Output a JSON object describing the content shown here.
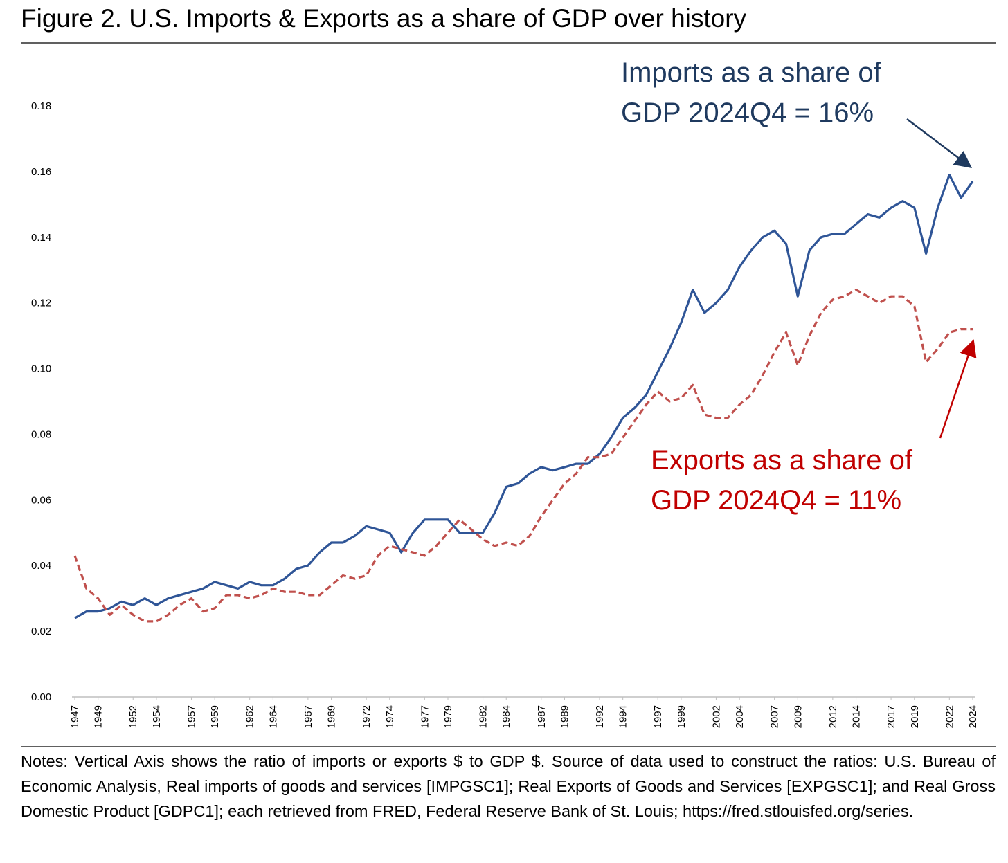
{
  "chart_data": {
    "type": "line",
    "title": "Figure 2. U.S. Imports & Exports as a share of GDP over history",
    "annotations": [
      {
        "lines": [
          "Imports as a share of",
          "GDP 2024Q4 = 16%"
        ],
        "color": "#1f3a5f"
      },
      {
        "lines": [
          "Exports as a share of",
          "GDP 2024Q4 = 11%"
        ],
        "color": "#c00000"
      }
    ],
    "notes": "Notes: Vertical Axis shows the ratio of imports or exports $ to GDP $. Source of data used to construct the ratios: U.S. Bureau of Economic Analysis, Real imports of goods and services [IMPGSC1]; Real Exports of Goods and Services [EXPGSC1]; and Real Gross Domestic Product [GDPC1]; each retrieved from FRED, Federal Reserve Bank of St. Louis; https://fred.stlouisfed.org/series.",
    "x": [
      1947,
      1948,
      1949,
      1950,
      1951,
      1952,
      1953,
      1954,
      1955,
      1956,
      1957,
      1958,
      1959,
      1960,
      1961,
      1962,
      1963,
      1964,
      1965,
      1966,
      1967,
      1968,
      1969,
      1970,
      1971,
      1972,
      1973,
      1974,
      1975,
      1976,
      1977,
      1978,
      1979,
      1980,
      1981,
      1982,
      1983,
      1984,
      1985,
      1986,
      1987,
      1988,
      1989,
      1990,
      1991,
      1992,
      1993,
      1994,
      1995,
      1996,
      1997,
      1998,
      1999,
      2000,
      2001,
      2002,
      2003,
      2004,
      2005,
      2006,
      2007,
      2008,
      2009,
      2010,
      2011,
      2012,
      2013,
      2014,
      2015,
      2016,
      2017,
      2018,
      2019,
      2020,
      2021,
      2022,
      2023,
      2024
    ],
    "series": [
      {
        "name": "Imports",
        "color": "#2f5597",
        "dashed": false,
        "values": [
          0.024,
          0.026,
          0.026,
          0.027,
          0.029,
          0.028,
          0.03,
          0.028,
          0.03,
          0.031,
          0.032,
          0.033,
          0.035,
          0.034,
          0.033,
          0.035,
          0.034,
          0.034,
          0.036,
          0.039,
          0.04,
          0.044,
          0.047,
          0.047,
          0.049,
          0.052,
          0.051,
          0.05,
          0.044,
          0.05,
          0.054,
          0.054,
          0.054,
          0.05,
          0.05,
          0.05,
          0.056,
          0.064,
          0.065,
          0.068,
          0.07,
          0.069,
          0.07,
          0.071,
          0.071,
          0.074,
          0.079,
          0.085,
          0.088,
          0.092,
          0.099,
          0.106,
          0.114,
          0.124,
          0.117,
          0.12,
          0.124,
          0.131,
          0.136,
          0.14,
          0.142,
          0.138,
          0.122,
          0.136,
          0.14,
          0.141,
          0.141,
          0.144,
          0.147,
          0.146,
          0.149,
          0.151,
          0.149,
          0.135,
          0.149,
          0.159,
          0.152,
          0.157
        ]
      },
      {
        "name": "Exports",
        "color": "#c0504d",
        "dashed": true,
        "values": [
          0.043,
          0.033,
          0.03,
          0.025,
          0.028,
          0.025,
          0.023,
          0.023,
          0.025,
          0.028,
          0.03,
          0.026,
          0.027,
          0.031,
          0.031,
          0.03,
          0.031,
          0.033,
          0.032,
          0.032,
          0.031,
          0.031,
          0.034,
          0.037,
          0.036,
          0.037,
          0.043,
          0.046,
          0.045,
          0.044,
          0.043,
          0.046,
          0.05,
          0.054,
          0.051,
          0.048,
          0.046,
          0.047,
          0.046,
          0.049,
          0.055,
          0.06,
          0.065,
          0.068,
          0.073,
          0.073,
          0.074,
          0.079,
          0.084,
          0.089,
          0.093,
          0.09,
          0.091,
          0.095,
          0.086,
          0.085,
          0.085,
          0.089,
          0.092,
          0.098,
          0.105,
          0.111,
          0.101,
          0.11,
          0.117,
          0.121,
          0.122,
          0.124,
          0.122,
          0.12,
          0.122,
          0.122,
          0.119,
          0.102,
          0.106,
          0.111,
          0.112,
          0.112
        ]
      }
    ],
    "xlim": [
      1947,
      2024
    ],
    "xticks": [
      1947,
      1949,
      1952,
      1954,
      1957,
      1959,
      1962,
      1964,
      1967,
      1969,
      1972,
      1974,
      1977,
      1979,
      1982,
      1984,
      1987,
      1989,
      1992,
      1994,
      1997,
      1999,
      2002,
      2004,
      2007,
      2009,
      2012,
      2014,
      2017,
      2019,
      2022,
      2024
    ],
    "ylim": [
      0,
      0.18
    ],
    "yticks": [
      {
        "value": 0,
        "label": "0.00"
      },
      0.02,
      0.04,
      0.06,
      0.08,
      {
        "value": 0.1,
        "label": "0.10"
      },
      0.12,
      0.14,
      0.16,
      0.18
    ],
    "grid": false
  }
}
